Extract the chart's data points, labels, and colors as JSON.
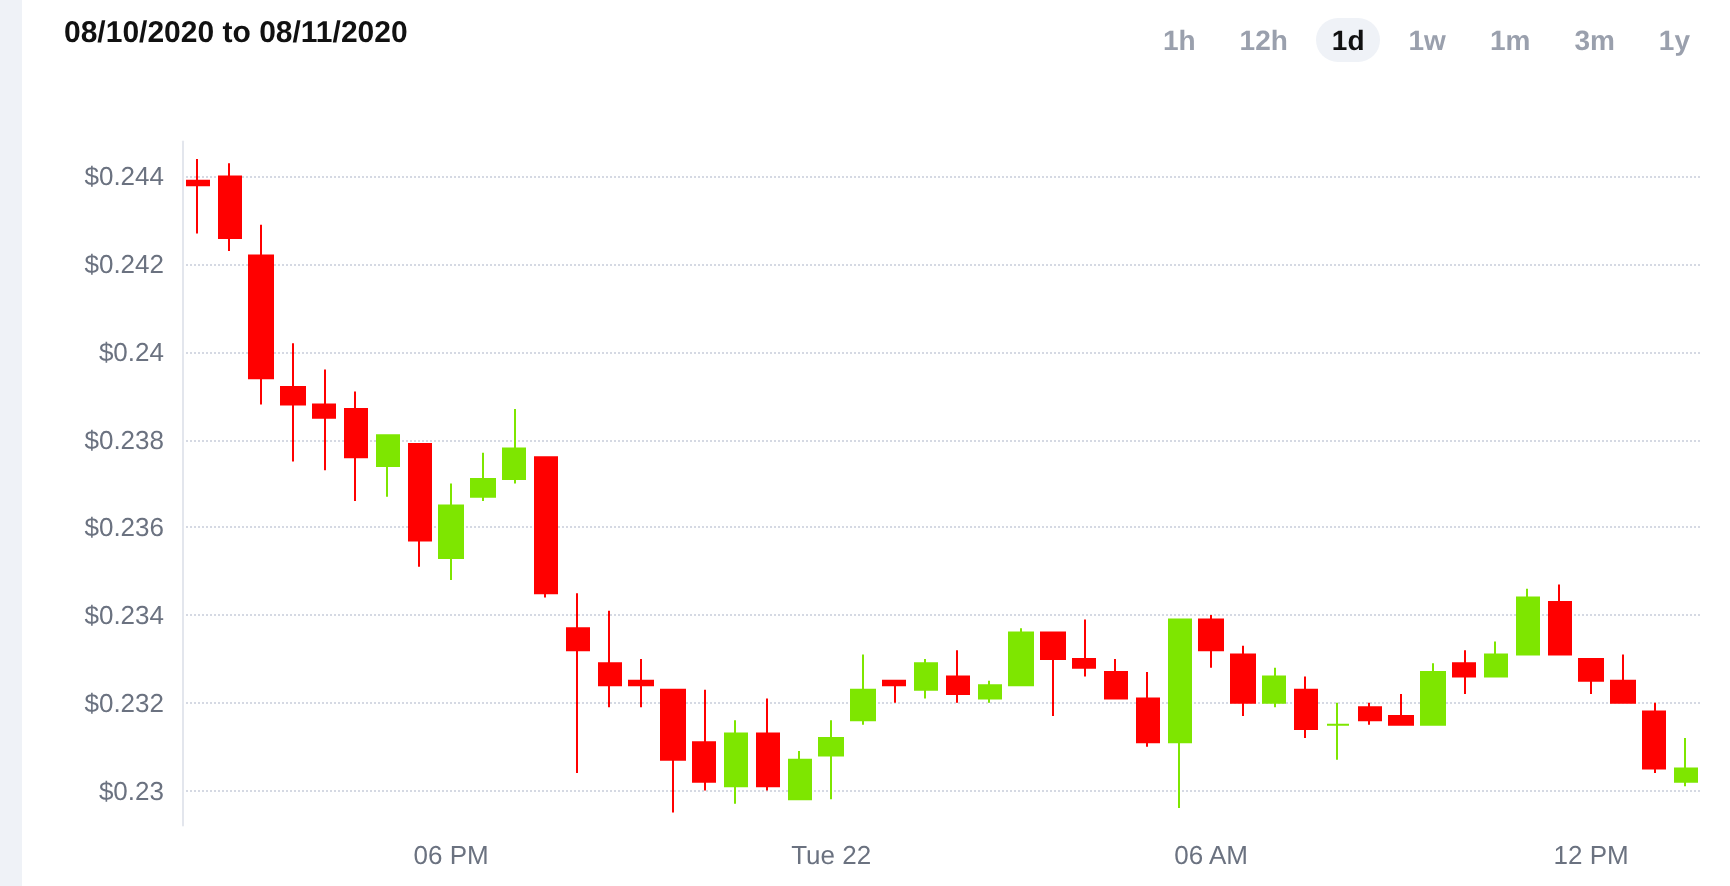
{
  "chart_data": {
    "type": "candlestick",
    "title": "08/10/2020 to 08/11/2020",
    "annotations": [
      "1h",
      "12h",
      "1d",
      "1w",
      "1m",
      "3m",
      "1y"
    ],
    "categories": [
      null,
      null,
      null,
      null,
      null,
      null,
      null,
      null,
      "06 PM",
      null,
      null,
      null,
      null,
      null,
      null,
      null,
      null,
      null,
      null,
      null,
      "Tue 22",
      null,
      null,
      null,
      null,
      null,
      null,
      null,
      null,
      null,
      null,
      null,
      "06 AM",
      null,
      null,
      null,
      null,
      null,
      null,
      null,
      null,
      null,
      null,
      null,
      "12 PM",
      null,
      null,
      null
    ],
    "ohlc": [
      [
        0.2439,
        0.2444,
        0.2427,
        0.2438
      ],
      [
        0.244,
        0.2443,
        0.2423,
        0.2426
      ],
      [
        0.2422,
        0.2429,
        0.2388,
        0.2394
      ],
      [
        0.2392,
        0.2402,
        0.2375,
        0.2388
      ],
      [
        0.2388,
        0.2396,
        0.2373,
        0.2385
      ],
      [
        0.2387,
        0.2391,
        0.2366,
        0.2376
      ],
      [
        0.2374,
        0.2381,
        0.2367,
        0.2381
      ],
      [
        0.2379,
        0.2379,
        0.2351,
        0.2357
      ],
      [
        0.2353,
        0.237,
        0.2348,
        0.2365
      ],
      [
        0.2367,
        0.2377,
        0.2366,
        0.2371
      ],
      [
        0.2371,
        0.2387,
        0.237,
        0.2378
      ],
      [
        0.2376,
        0.2376,
        0.2344,
        0.2345
      ],
      [
        0.2337,
        0.2345,
        0.2304,
        0.2332
      ],
      [
        0.2329,
        0.2341,
        0.2319,
        0.2324
      ],
      [
        0.2325,
        0.233,
        0.2319,
        0.2324
      ],
      [
        0.2323,
        0.2323,
        0.2295,
        0.2307
      ],
      [
        0.2311,
        0.2323,
        0.23,
        0.2302
      ],
      [
        0.2301,
        0.2316,
        0.2297,
        0.2313
      ],
      [
        0.2313,
        0.2321,
        0.23,
        0.2301
      ],
      [
        0.2298,
        0.2309,
        0.2298,
        0.2307
      ],
      [
        0.2308,
        0.2316,
        0.2298,
        0.2312
      ],
      [
        0.2316,
        0.2331,
        0.2315,
        0.2323
      ],
      [
        0.2325,
        0.2325,
        0.232,
        0.2324
      ],
      [
        0.2323,
        0.233,
        0.2321,
        0.2329
      ],
      [
        0.2326,
        0.2332,
        0.232,
        0.2322
      ],
      [
        0.2321,
        0.2325,
        0.232,
        0.2324
      ],
      [
        0.2324,
        0.2337,
        0.2324,
        0.2336
      ],
      [
        0.2336,
        0.2336,
        0.2317,
        0.233
      ],
      [
        0.233,
        0.2339,
        0.2326,
        0.2328
      ],
      [
        0.2327,
        0.233,
        0.2321,
        0.2321
      ],
      [
        0.2321,
        0.2327,
        0.231,
        0.2311
      ],
      [
        0.2311,
        0.2339,
        0.2296,
        0.2339
      ],
      [
        0.2339,
        0.234,
        0.2328,
        0.2332
      ],
      [
        0.2331,
        0.2333,
        0.2317,
        0.232
      ],
      [
        0.232,
        0.2328,
        0.2319,
        0.2326
      ],
      [
        0.2323,
        0.2326,
        0.2312,
        0.2314
      ],
      [
        0.2315,
        0.232,
        0.2307,
        0.2315
      ],
      [
        0.2319,
        0.232,
        0.2315,
        0.2316
      ],
      [
        0.2317,
        0.2322,
        0.2315,
        0.2315
      ],
      [
        0.2315,
        0.2329,
        0.2315,
        0.2327
      ],
      [
        0.2329,
        0.2332,
        0.2322,
        0.2326
      ],
      [
        0.2326,
        0.2334,
        0.2326,
        0.2331
      ],
      [
        0.2331,
        0.2346,
        0.2331,
        0.2344
      ],
      [
        0.2343,
        0.2347,
        0.2331,
        0.2331
      ],
      [
        0.233,
        0.233,
        0.2322,
        0.2325
      ],
      [
        0.2325,
        0.2331,
        0.232,
        0.232
      ],
      [
        0.2318,
        0.232,
        0.2304,
        0.2305
      ],
      [
        0.2302,
        0.2312,
        0.2301,
        0.2305
      ]
    ],
    "colors": [
      "#ff0000",
      "#ff0000",
      "#ff0000",
      "#ff0000",
      "#ff0000",
      "#ff0000",
      "#7ee600",
      "#ff0000",
      "#7ee600",
      "#7ee600",
      "#7ee600",
      "#ff0000",
      "#ff0000",
      "#ff0000",
      "#ff0000",
      "#ff0000",
      "#ff0000",
      "#7ee600",
      "#ff0000",
      "#7ee600",
      "#7ee600",
      "#7ee600",
      "#ff0000",
      "#7ee600",
      "#ff0000",
      "#7ee600",
      "#7ee600",
      "#ff0000",
      "#ff0000",
      "#ff0000",
      "#ff0000",
      "#7ee600",
      "#ff0000",
      "#ff0000",
      "#7ee600",
      "#ff0000",
      "#7ee600",
      "#ff0000",
      "#ff0000",
      "#7ee600",
      "#ff0000",
      "#7ee600",
      "#7ee600",
      "#ff0000",
      "#ff0000",
      "#ff0000",
      "#ff0000",
      "#7ee600"
    ],
    "ylim": [
      0.2292,
      0.2448
    ],
    "yticks": [
      {
        "value": 0.23,
        "label": "$0.23"
      },
      {
        "value": 0.232,
        "label": "$0.232"
      },
      {
        "value": 0.234,
        "label": "$0.234"
      },
      {
        "value": 0.236,
        "label": "$0.236"
      },
      {
        "value": 0.238,
        "label": "$0.238"
      },
      {
        "value": 0.24,
        "label": "$0.24"
      },
      {
        "value": 0.242,
        "label": "$0.242"
      },
      {
        "value": 0.244,
        "label": "$0.244"
      }
    ],
    "grid": "y"
  }
}
